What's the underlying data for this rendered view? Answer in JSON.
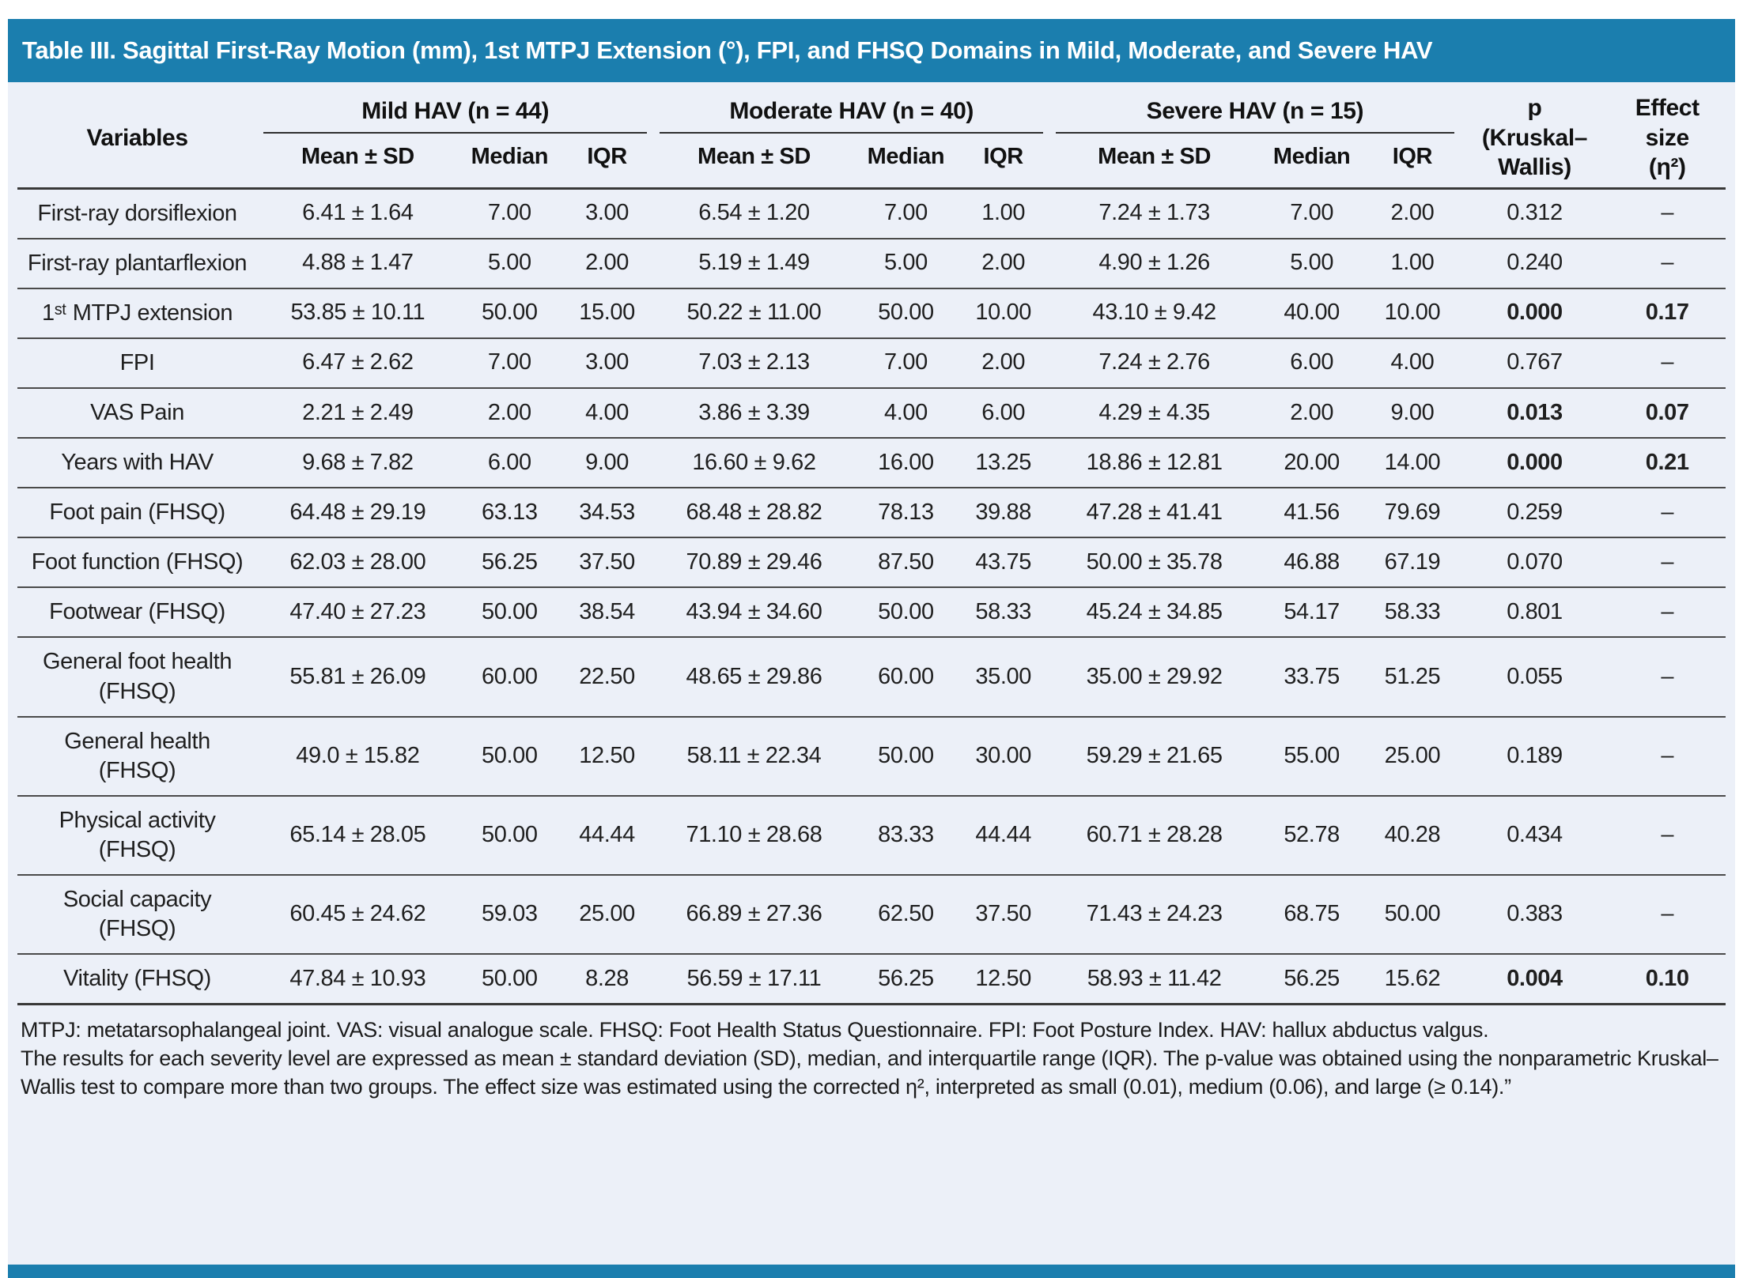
{
  "title": "Table III. Sagittal First-Ray Motion (mm), 1st MTPJ Extension (°), FPI, and FHSQ Domains in Mild, Moderate, and Severe HAV",
  "colors": {
    "title_bar_bg": "#1b7eae",
    "title_text": "#ffffff",
    "body_bg": "#ecf0f8",
    "rule_line": "#383838"
  },
  "table": {
    "variables_header": "Variables",
    "groups": [
      {
        "label": "Mild HAV (n = 44)"
      },
      {
        "label": "Moderate HAV (n = 40)"
      },
      {
        "label": "Severe HAV (n = 15)"
      }
    ],
    "subheaders": [
      "Mean ± SD",
      "Median",
      "IQR"
    ],
    "p_header": "p\n(Kruskal–\nWallis)",
    "effect_header": "Effect\nsize\n(η²)",
    "rows": [
      {
        "variable": "First-ray dorsiflexion",
        "mild": [
          "6.41 ± 1.64",
          "7.00",
          "3.00"
        ],
        "moderate": [
          "6.54 ± 1.20",
          "7.00",
          "1.00"
        ],
        "severe": [
          "7.24 ± 1.73",
          "7.00",
          "2.00"
        ],
        "p": "0.312",
        "effect": "–",
        "sig": false
      },
      {
        "variable": "First-ray plantarflexion",
        "mild": [
          "4.88 ± 1.47",
          "5.00",
          "2.00"
        ],
        "moderate": [
          "5.19 ± 1.49",
          "5.00",
          "2.00"
        ],
        "severe": [
          "4.90 ± 1.26",
          "5.00",
          "1.00"
        ],
        "p": "0.240",
        "effect": "–",
        "sig": false
      },
      {
        "variable": "1ˢᵗ MTPJ extension",
        "mild": [
          "53.85 ± 10.11",
          "50.00",
          "15.00"
        ],
        "moderate": [
          "50.22 ± 11.00",
          "50.00",
          "10.00"
        ],
        "severe": [
          "43.10 ± 9.42",
          "40.00",
          "10.00"
        ],
        "p": "0.000",
        "effect": "0.17",
        "sig": true
      },
      {
        "variable": "FPI",
        "mild": [
          "6.47 ± 2.62",
          "7.00",
          "3.00"
        ],
        "moderate": [
          "7.03 ± 2.13",
          "7.00",
          "2.00"
        ],
        "severe": [
          "7.24 ± 2.76",
          "6.00",
          "4.00"
        ],
        "p": "0.767",
        "effect": "–",
        "sig": false
      },
      {
        "variable": "VAS Pain",
        "mild": [
          "2.21 ± 2.49",
          "2.00",
          "4.00"
        ],
        "moderate": [
          "3.86 ± 3.39",
          "4.00",
          "6.00"
        ],
        "severe": [
          "4.29 ± 4.35",
          "2.00",
          "9.00"
        ],
        "p": "0.013",
        "effect": "0.07",
        "sig": true
      },
      {
        "variable": "Years with HAV",
        "mild": [
          "9.68 ± 7.82",
          "6.00",
          "9.00"
        ],
        "moderate": [
          "16.60 ± 9.62",
          "16.00",
          "13.25"
        ],
        "severe": [
          "18.86 ± 12.81",
          "20.00",
          "14.00"
        ],
        "p": "0.000",
        "effect": "0.21",
        "sig": true
      },
      {
        "variable": "Foot pain (FHSQ)",
        "mild": [
          "64.48 ± 29.19",
          "63.13",
          "34.53"
        ],
        "moderate": [
          "68.48 ± 28.82",
          "78.13",
          "39.88"
        ],
        "severe": [
          "47.28 ± 41.41",
          "41.56",
          "79.69"
        ],
        "p": "0.259",
        "effect": "–",
        "sig": false
      },
      {
        "variable": "Foot function (FHSQ)",
        "mild": [
          "62.03 ± 28.00",
          "56.25",
          "37.50"
        ],
        "moderate": [
          "70.89 ± 29.46",
          "87.50",
          "43.75"
        ],
        "severe": [
          "50.00 ± 35.78",
          "46.88",
          "67.19"
        ],
        "p": "0.070",
        "effect": "–",
        "sig": false
      },
      {
        "variable": "Footwear (FHSQ)",
        "mild": [
          "47.40 ± 27.23",
          "50.00",
          "38.54"
        ],
        "moderate": [
          "43.94 ± 34.60",
          "50.00",
          "58.33"
        ],
        "severe": [
          "45.24 ± 34.85",
          "54.17",
          "58.33"
        ],
        "p": "0.801",
        "effect": "–",
        "sig": false
      },
      {
        "variable": "General foot health (FHSQ)",
        "mild": [
          "55.81 ± 26.09",
          "60.00",
          "22.50"
        ],
        "moderate": [
          "48.65 ± 29.86",
          "60.00",
          "35.00"
        ],
        "severe": [
          "35.00 ± 29.92",
          "33.75",
          "51.25"
        ],
        "p": "0.055",
        "effect": "–",
        "sig": false
      },
      {
        "variable": "General health (FHSQ)",
        "mild": [
          "49.0 ± 15.82",
          "50.00",
          "12.50"
        ],
        "moderate": [
          "58.11 ± 22.34",
          "50.00",
          "30.00"
        ],
        "severe": [
          "59.29 ± 21.65",
          "55.00",
          "25.00"
        ],
        "p": "0.189",
        "effect": "–",
        "sig": false
      },
      {
        "variable": "Physical activity (FHSQ)",
        "mild": [
          "65.14 ± 28.05",
          "50.00",
          "44.44"
        ],
        "moderate": [
          "71.10 ± 28.68",
          "83.33",
          "44.44"
        ],
        "severe": [
          "60.71 ± 28.28",
          "52.78",
          "40.28"
        ],
        "p": "0.434",
        "effect": "–",
        "sig": false
      },
      {
        "variable": "Social capacity (FHSQ)",
        "mild": [
          "60.45 ± 24.62",
          "59.03",
          "25.00"
        ],
        "moderate": [
          "66.89 ± 27.36",
          "62.50",
          "37.50"
        ],
        "severe": [
          "71.43 ± 24.23",
          "68.75",
          "50.00"
        ],
        "p": "0.383",
        "effect": "–",
        "sig": false
      },
      {
        "variable": "Vitality (FHSQ)",
        "mild": [
          "47.84 ± 10.93",
          "50.00",
          "8.28"
        ],
        "moderate": [
          "56.59 ± 17.11",
          "56.25",
          "12.50"
        ],
        "severe": [
          "58.93 ± 11.42",
          "56.25",
          "15.62"
        ],
        "p": "0.004",
        "effect": "0.10",
        "sig": true
      }
    ]
  },
  "footnotes": {
    "abbreviations": "MTPJ: metatarsophalangeal joint. VAS: visual analogue scale. FHSQ: Foot Health Status Questionnaire. FPI: Foot Posture Index. HAV: hallux abductus valgus.",
    "methods": "The results for each severity level are expressed as mean ± standard deviation (SD), median, and interquartile range (IQR). The p-value was obtained using the nonparametric Kruskal–Wallis test to compare more than two groups. The effect size was estimated using the corrected η², interpreted as small (0.01), medium (0.06), and large (≥ 0.14).”"
  }
}
